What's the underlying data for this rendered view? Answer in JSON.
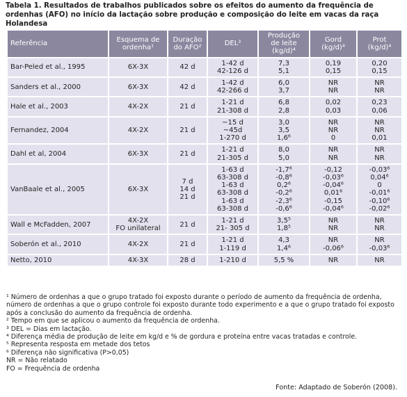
{
  "title": "Tabela 1. Resultados de trabalhos publicados sobre os efeitos do aumento da frequência de ordenhas (AFO) no início da lactação sobre produção e composição do leite em vacas da raça Holandesa",
  "table": {
    "header": [
      [
        "Referência"
      ],
      [
        "Esquema de",
        "ordenha¹"
      ],
      [
        "Duração",
        "do AFO²"
      ],
      [
        "DEL³"
      ],
      [
        "Produção",
        "de leite",
        "(kg/d)⁴"
      ],
      [
        "Gord",
        "(kg/d)⁴"
      ],
      [
        "Prot",
        "(kg/d)⁴"
      ]
    ],
    "rows": [
      [
        [
          "Bar-Peled et al., 1995"
        ],
        [
          "6X-3X"
        ],
        [
          "42 d"
        ],
        [
          "1-42 d",
          "42-126 d"
        ],
        [
          "7,3",
          "5,1"
        ],
        [
          "0,19",
          "0,15"
        ],
        [
          "0,20",
          "0,15"
        ]
      ],
      [
        [
          "Sanders et al., 2000"
        ],
        [
          "6X-3X"
        ],
        [
          "42 d"
        ],
        [
          "1-42 d",
          "42-266 d"
        ],
        [
          "6,0",
          "3,7"
        ],
        [
          "NR",
          "NR"
        ],
        [
          "NR",
          "NR"
        ]
      ],
      [
        [
          "Hale et al., 2003"
        ],
        [
          "4X-2X"
        ],
        [
          "21 d"
        ],
        [
          "1-21 d",
          "21-308 d"
        ],
        [
          "6,8",
          "2,8"
        ],
        [
          "0,02",
          "0,03"
        ],
        [
          "0,23",
          "0,06"
        ]
      ],
      [
        [
          "Fernandez, 2004"
        ],
        [
          "4X-2X"
        ],
        [
          "21 d"
        ],
        [
          "~15 d",
          "~45d",
          "1-270 d"
        ],
        [
          "3,0",
          "3,5",
          "1,6⁶"
        ],
        [
          "NR",
          "NR",
          "0"
        ],
        [
          "NR",
          "NR",
          "0,01"
        ]
      ],
      [
        [
          "Dahl et al, 2004"
        ],
        [
          "6X-3X"
        ],
        [
          "21 d"
        ],
        [
          "1-21 d",
          "21-305 d"
        ],
        [
          "8,0",
          "5,0"
        ],
        [
          "NR",
          "NR"
        ],
        [
          "NR",
          "NR"
        ]
      ],
      [
        [
          "VanBaale et al., 2005"
        ],
        [
          "6X-3X"
        ],
        [
          "7 d",
          "14 d",
          "21 d"
        ],
        [
          "1-63 d",
          "63-308 d",
          "1-63 d",
          "63-308 d",
          "1-63 d",
          "63-308 d"
        ],
        [
          "-1,7⁶",
          "-0,8⁶",
          "0,2⁶",
          "-0,2⁶",
          "-2,3⁶",
          "-0,6⁶"
        ],
        [
          "-0,12",
          "-0,03⁶",
          "-0,04⁶",
          "0,01⁶",
          "-0,15",
          "-0,04⁶"
        ],
        [
          "-0,03⁶",
          "0,04⁶",
          "0",
          "-0,01⁶",
          "-0,10⁶",
          "-0,02⁶"
        ]
      ],
      [
        [
          "Wall e McFadden, 2007"
        ],
        [
          "4X-2X",
          "FO unilateral"
        ],
        [
          "21 d"
        ],
        [
          "1-21 d",
          "21- 305 d"
        ],
        [
          "3,5⁵",
          "1,8⁵"
        ],
        [
          "NR",
          "NR"
        ],
        [
          "NR",
          "NR"
        ]
      ],
      [
        [
          "Soberón et al., 2010"
        ],
        [
          "4X-2X"
        ],
        [
          "21 d"
        ],
        [
          "1-21 d",
          "1-119 d"
        ],
        [
          "4,3",
          "1,4⁶"
        ],
        [
          "NR",
          "-0,06⁶"
        ],
        [
          "NR",
          "-0,03⁶"
        ]
      ],
      [
        [
          "Netto, 2010"
        ],
        [
          "4X-3X"
        ],
        [
          "28 d"
        ],
        [
          "1-210 d"
        ],
        [
          "5,5 %"
        ],
        [
          "NR"
        ],
        [
          "NR"
        ]
      ]
    ]
  },
  "footnotes": [
    "¹ Número de ordenhas a que o grupo tratado foi exposto durante o período de aumento da frequência de ordenha, número de ordenhas a que o grupo controle foi exposto durante todo experimento e a que o grupo tratado foi exposto após a conclusão do aumento da frequência de ordenha.",
    "² Tempo em que se aplicou o aumento da frequência de ordenha.",
    "³ DEL = Dias em lactação.",
    "⁴ Diferença média de produção de leite em kg/d e % de gordura e proteína entre vacas tratadas e controle.",
    "⁵ Representa resposta em metade dos tetos",
    "⁶ Diferença não significativa (P>0,05)",
    "NR = Não relatado",
    "FO = Frequência de ordenha"
  ],
  "source": "Fonte: Adaptado de Soberón (2008)."
}
